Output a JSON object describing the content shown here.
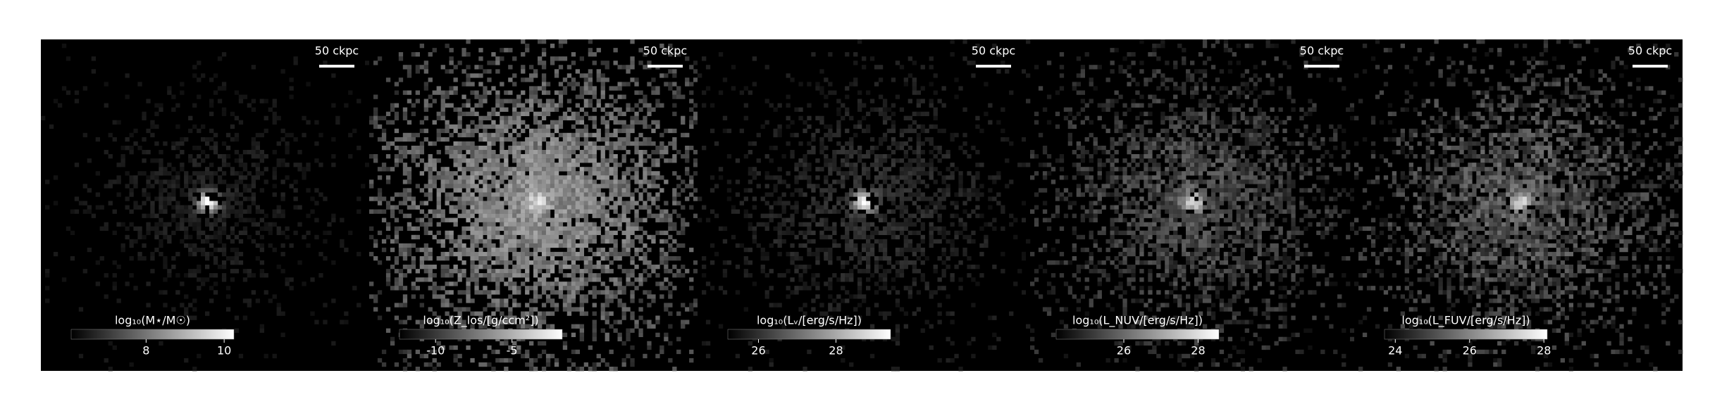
{
  "chart_data": [
    {
      "type": "image",
      "scale_bar": "50 ckpc",
      "colorbar_label": "log₁₀(M⋆/M☉)",
      "clim": [
        6.08,
        10.25
      ],
      "cticks": [
        8,
        10
      ]
    },
    {
      "type": "image",
      "scale_bar": "50 ckpc",
      "colorbar_label": "log₁₀(Z_los/[g/ccm²])",
      "clim": [
        -12.36,
        -1.71
      ],
      "cticks": [
        -10,
        -5
      ]
    },
    {
      "type": "image",
      "scale_bar": "50 ckpc",
      "colorbar_label": "log₁₀(Lᵥ/[erg/s/Hz])",
      "clim": [
        25.21,
        29.41
      ],
      "cticks": [
        26,
        28
      ]
    },
    {
      "type": "image",
      "scale_bar": "50 ckpc",
      "colorbar_label": "log₁₀(L_NUV/[erg/s/Hz])",
      "clim": [
        24.18,
        28.56
      ],
      "cticks": [
        26,
        28
      ]
    },
    {
      "type": "image",
      "scale_bar": "50 ckpc",
      "colorbar_label": "log₁₀(L_FUV/[erg/s/Hz])",
      "clim": [
        23.71,
        28.09
      ],
      "cticks": [
        24,
        26,
        28
      ]
    }
  ]
}
